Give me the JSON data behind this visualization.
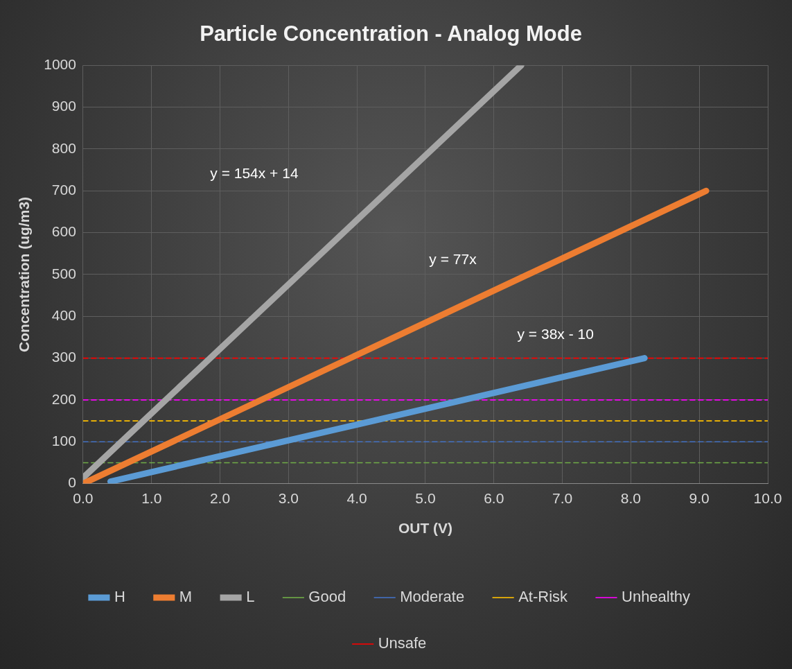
{
  "chart_data": {
    "type": "line",
    "title": "Particle Concentration - Analog Mode",
    "xlabel": "OUT (V)",
    "ylabel": "Concentration (ug/m3)",
    "xlim": [
      0,
      10
    ],
    "xticks": [
      {
        "value": 0,
        "label": "0.0"
      },
      {
        "value": 1,
        "label": "1.0"
      },
      {
        "value": 2,
        "label": "2.0"
      },
      {
        "value": 3,
        "label": "3.0"
      },
      {
        "value": 4,
        "label": "4.0"
      },
      {
        "value": 5,
        "label": "5.0"
      },
      {
        "value": 6,
        "label": "6.0"
      },
      {
        "value": 7,
        "label": "7.0"
      },
      {
        "value": 8,
        "label": "8.0"
      },
      {
        "value": 9,
        "label": "9.0"
      },
      {
        "value": 10,
        "label": "10.0"
      }
    ],
    "ylim": [
      0,
      1000
    ],
    "yticks": [
      0,
      100,
      200,
      300,
      400,
      500,
      600,
      700,
      800,
      900,
      1000
    ],
    "grid": true,
    "legend": "bottom",
    "marker": "none",
    "series": [
      {
        "name": "H",
        "color": "#5b9bd5",
        "x": [
          0.4,
          8.2
        ],
        "values": [
          5,
          300
        ],
        "line_style": "solid"
      },
      {
        "name": "M",
        "color": "#ed7d31",
        "x": [
          0,
          9.1
        ],
        "values": [
          0,
          700
        ],
        "line_style": "solid"
      },
      {
        "name": "L",
        "color": "#a5a5a5",
        "x": [
          0,
          6.4
        ],
        "values": [
          14,
          1000
        ],
        "line_style": "solid"
      },
      {
        "name": "Good",
        "color": "#70ad47",
        "x": [
          0,
          10
        ],
        "values": [
          50,
          50
        ],
        "line_style": "dashed"
      },
      {
        "name": "Moderate",
        "color": "#4472c4",
        "x": [
          0,
          10
        ],
        "values": [
          100,
          100
        ],
        "line_style": "dashed"
      },
      {
        "name": "At-Risk",
        "color": "#ffc000",
        "x": [
          0,
          10
        ],
        "values": [
          150,
          150
        ],
        "line_style": "dashed"
      },
      {
        "name": "Unhealthy",
        "color": "#ff00ff",
        "x": [
          0,
          10
        ],
        "values": [
          200,
          200
        ],
        "line_style": "dashed"
      },
      {
        "name": "Unsafe",
        "color": "#ff0000",
        "x": [
          0,
          10
        ],
        "values": [
          300,
          300
        ],
        "line_style": "dashed"
      }
    ],
    "annotations": [
      "y = 154x + 14",
      "y = 77x",
      "y = 38x - 10"
    ]
  }
}
